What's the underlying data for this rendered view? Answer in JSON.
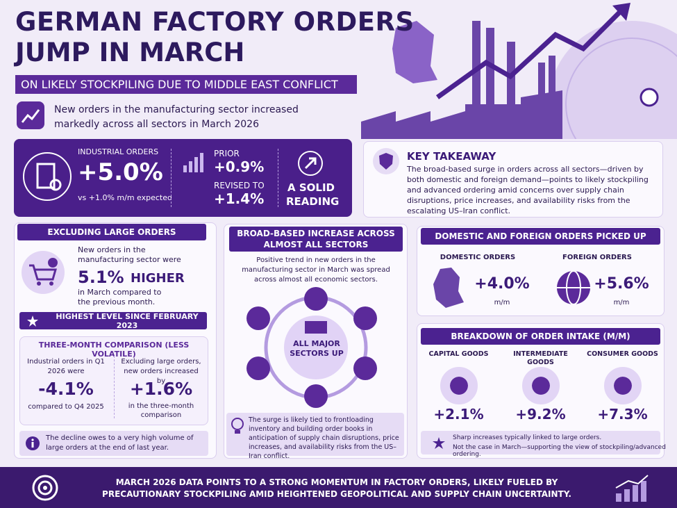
{
  "header": {
    "title_line1": "GERMAN FACTORY ORDERS",
    "title_line2": "JUMP IN MARCH",
    "subtitle": "ON LIKELY STOCKPILING DUE TO MIDDLE EAST CONFLICT",
    "intro": "New orders in the manufacturing sector increased markedly across all sectors in March 2026"
  },
  "headline_box": {
    "label": "INDUSTRIAL ORDERS",
    "value": "+5.0%",
    "note": "vs +1.0% m/m expected",
    "prior_label": "PRIOR",
    "prior_value": "+0.9%",
    "revised_label": "REVISED TO",
    "revised_value": "+1.4%",
    "verdict": "A SOLID READING"
  },
  "key_takeaway": {
    "title": "KEY TAKEAWAY",
    "text": "The broad-based surge in orders across all sectors—driven by both domestic and foreign demand—points to likely stockpiling and advanced ordering amid concerns over supply chain disruptions, price increases, and availability risks from the escalating US–Iran conflict."
  },
  "excluding_large": {
    "title": "EXCLUDING LARGE ORDERS",
    "text_before": "New orders in the manufacturing sector were",
    "value": "5.1%",
    "value_word": "HIGHER",
    "text_after": "in March compared to the previous month.",
    "banner": "HIGHEST LEVEL SINCE FEBRUARY 2023"
  },
  "three_month": {
    "title": "THREE-MONTH COMPARISON (LESS VOLATILE)",
    "left": {
      "text_before": "Industrial orders in Q1 2026 were",
      "value": "-4.1%",
      "text_after": "compared to Q4 2025"
    },
    "right": {
      "text_before": "Excluding large orders, new orders increased by",
      "value": "+1.6%",
      "text_after": "in the three-month comparison"
    },
    "note": "The decline owes to a very high volume of large orders at the end of last year."
  },
  "broad": {
    "title": "BROAD-BASED INCREASE ACROSS ALMOST ALL SECTORS",
    "text": "Positive trend in new orders in the manufacturing sector in March was spread across almost all economic sectors.",
    "center": "ALL MAJOR SECTORS UP",
    "note": "The surge is likely tied to frontloading inventory and building order books in anticipation of supply chain disruptions, price increases, and availability risks from the US–Iran conflict."
  },
  "domestic_foreign": {
    "title": "DOMESTIC AND FOREIGN ORDERS PICKED UP",
    "items": [
      {
        "label": "DOMESTIC ORDERS",
        "value": "+4.0%",
        "unit": "m/m"
      },
      {
        "label": "FOREIGN ORDERS",
        "value": "+5.6%",
        "unit": "m/m"
      }
    ]
  },
  "breakdown": {
    "title": "BREAKDOWN OF ORDER INTAKE (M/M)",
    "items": [
      {
        "label": "CAPITAL GOODS",
        "value": "+2.1%"
      },
      {
        "label": "INTERMEDIATE GOODS",
        "value": "+9.2%"
      },
      {
        "label": "CONSUMER GOODS",
        "value": "+7.3%"
      }
    ],
    "note_line1": "Sharp increases typically linked to large orders.",
    "note_line2": "Not the case in March—supporting the view of stockpiling/advanced ordering."
  },
  "footer": {
    "text": "MARCH 2026 DATA POINTS TO A STRONG MOMENTUM IN FACTORY ORDERS, LIKELY FUELED BY PRECAUTIONARY STOCKPILING AMID HEIGHTENED GEOPOLITICAL AND SUPPLY CHAIN UNCERTAINTY."
  }
}
